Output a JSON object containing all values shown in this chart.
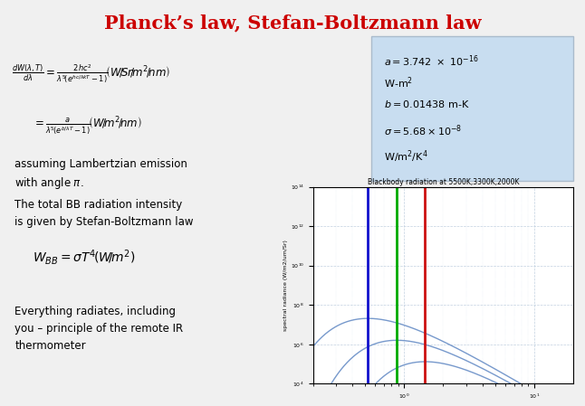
{
  "title": "Planck’s law, Stefan-Boltzmann law",
  "title_color": "#cc0000",
  "title_fontsize": 15,
  "bg_color": "#f0f0f0",
  "plot_title": "Blackbody radiation at 5500K,3300K,2000K",
  "plot_ylabel": "spectral radiance (W/m2/um/Sr)",
  "temperatures": [
    5500,
    3300,
    2000
  ],
  "vline_colors": [
    "#1010cc",
    "#00aa00",
    "#cc1010"
  ],
  "curve_color": "#7799cc",
  "box_bg": "#c8ddf0",
  "box_edge": "#aabbcc"
}
